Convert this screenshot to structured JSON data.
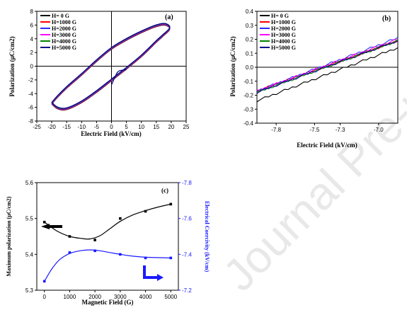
{
  "watermark": "Journal Pre-proof",
  "chart_data": [
    {
      "type": "line",
      "panel_label": "(a)",
      "xlabel": "Electric Field (kV/cm)",
      "ylabel": "Polarization (μC/cm2)",
      "xlim": [
        -25,
        25
      ],
      "ylim": [
        -8,
        8
      ],
      "xticks": [
        -25,
        -20,
        -15,
        -10,
        -5,
        0,
        5,
        10,
        15,
        20,
        25
      ],
      "yticks": [
        -8,
        -6,
        -4,
        -2,
        0,
        2,
        4,
        6,
        8
      ],
      "legend_position": "top-left",
      "legend": [
        "H= 0 G",
        "H=1000 G",
        "H=2000 G",
        "H=3000 G",
        "H=4000 G",
        "H=5000 G"
      ],
      "colors": [
        "#000000",
        "#ff0000",
        "#2a2aff",
        "#ff00ff",
        "#008000",
        "#00008b"
      ],
      "loop_upper": {
        "x": [
          -20,
          -18,
          -15,
          -10,
          -5,
          0,
          5,
          10,
          15,
          18,
          19.5
        ],
        "y": [
          -5.4,
          -4.4,
          -3.1,
          -1.2,
          0.8,
          2.6,
          3.9,
          5.0,
          5.9,
          6.1,
          5.5
        ]
      },
      "loop_lower": {
        "x": [
          19.5,
          17,
          15,
          10,
          5,
          0,
          -5,
          -10,
          -15,
          -18,
          -20
        ],
        "y": [
          5.5,
          4.4,
          3.6,
          1.5,
          -0.3,
          -2.0,
          -3.7,
          -5.2,
          -6.2,
          -6.1,
          -5.4
        ]
      },
      "initial_branch": {
        "x": [
          0,
          2,
          3.5,
          5
        ],
        "y": [
          -2.7,
          -0.9,
          -0.6,
          -0.5
        ]
      }
    },
    {
      "type": "line",
      "panel_label": "(b)",
      "xlabel": "Electric Field (kV/cm)",
      "ylabel": "Polarization (μC/cm2)",
      "xlim": [
        -7.95,
        -6.85
      ],
      "ylim": [
        -0.4,
        0.4
      ],
      "xticks": [
        -7.8,
        -7.5,
        -7.3,
        -7.0
      ],
      "yticks": [
        -0.4,
        -0.3,
        -0.2,
        -0.1,
        0.0,
        0.1,
        0.2,
        0.3,
        0.4
      ],
      "xtick_labels": [
        "-7.8",
        "-7.5",
        "-7.3",
        "-7.0"
      ],
      "ytick_labels": [
        "-0.4",
        "-0.3",
        "-0.2",
        "-0.1",
        "0.0",
        "0.1",
        "0.2",
        "0.3",
        "0.4"
      ],
      "legend_position": "top-left",
      "series": [
        {
          "name": "H= 0 G",
          "color": "#000000",
          "x": [
            -7.95,
            -6.85
          ],
          "y": [
            -0.24,
            0.14
          ]
        },
        {
          "name": "H=1000 G",
          "color": "#ff0000",
          "x": [
            -7.95,
            -6.85
          ],
          "y": [
            -0.17,
            0.19
          ]
        },
        {
          "name": "H=2000 G",
          "color": "#2a2aff",
          "x": [
            -7.95,
            -6.85
          ],
          "y": [
            -0.17,
            0.21
          ]
        },
        {
          "name": "H=3000 G",
          "color": "#ff00ff",
          "x": [
            -7.95,
            -6.85
          ],
          "y": [
            -0.17,
            0.2
          ]
        },
        {
          "name": "H=4000 G",
          "color": "#008000",
          "x": [
            -7.95,
            -6.85
          ],
          "y": [
            -0.18,
            0.19
          ]
        },
        {
          "name": "H=5000 G",
          "color": "#00008b",
          "x": [
            -7.95,
            -6.85
          ],
          "y": [
            -0.18,
            0.19
          ]
        }
      ]
    },
    {
      "type": "line",
      "panel_label": "(c)",
      "xlabel": "Magnetic Field (G)",
      "ylabel": "Maximum polarization (μC/cm2)",
      "y2label": "Electrical Coercivity (kV/cm)",
      "xlim": [
        -300,
        5300
      ],
      "ylim": [
        5.3,
        5.6
      ],
      "y2lim": [
        -7.2,
        -7.8
      ],
      "xticks": [
        0,
        1000,
        2000,
        3000,
        4000,
        5000
      ],
      "yticks": [
        5.3,
        5.4,
        5.5,
        5.6
      ],
      "y2ticks": [
        -7.2,
        -7.4,
        -7.6,
        -7.8
      ],
      "series": [
        {
          "name": "Maximum polarization",
          "color": "#000000",
          "axis": "left",
          "x": [
            0,
            1000,
            2000,
            3000,
            4000,
            5000
          ],
          "y": [
            5.49,
            5.45,
            5.44,
            5.5,
            5.52,
            5.54
          ],
          "fit_x": [
            0,
            500,
            1000,
            1500,
            1800,
            2200,
            2600,
            3000,
            3500,
            4000,
            4500,
            5000
          ],
          "fit_y": [
            5.49,
            5.465,
            5.45,
            5.444,
            5.443,
            5.452,
            5.472,
            5.492,
            5.51,
            5.522,
            5.532,
            5.54
          ]
        },
        {
          "name": "Electrical Coercivity",
          "color": "#1a1aff",
          "axis": "right",
          "x": [
            0,
            1000,
            2000,
            3000,
            4000,
            5000
          ],
          "y": [
            -7.25,
            -7.41,
            -7.42,
            -7.4,
            -7.38,
            -7.38
          ],
          "fit_x": [
            0,
            300,
            600,
            1000,
            1400,
            1800,
            2200,
            2600,
            3000,
            3500,
            4000,
            4500,
            5000
          ],
          "fit_y": [
            -7.25,
            -7.32,
            -7.37,
            -7.405,
            -7.42,
            -7.425,
            -7.42,
            -7.41,
            -7.4,
            -7.39,
            -7.384,
            -7.382,
            -7.38
          ]
        }
      ]
    }
  ]
}
